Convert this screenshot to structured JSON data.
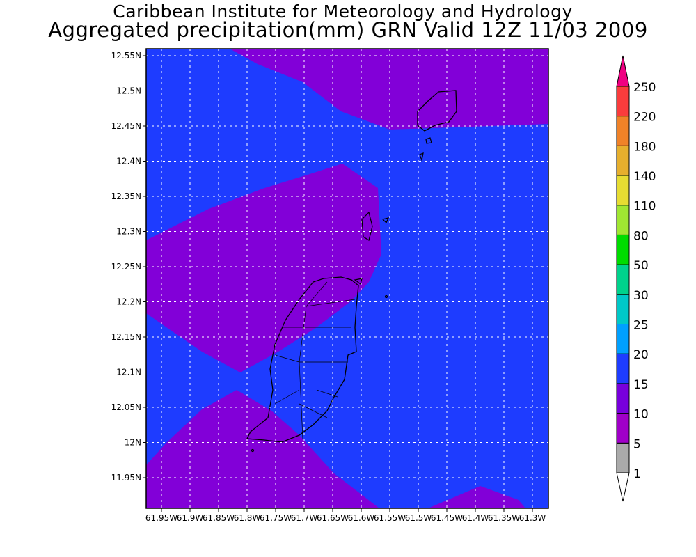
{
  "title": {
    "line1": "Caribbean Institute for Meteorology and Hydrology",
    "line2": "Aggregated precipitation(mm) GRN Valid 12Z 11/03 2009"
  },
  "map": {
    "region": "Grenada",
    "lat_labels": [
      "12.55N",
      "12.5N",
      "12.45N",
      "12.4N",
      "12.35N",
      "12.3N",
      "12.25N",
      "12.2N",
      "12.15N",
      "12.1N",
      "12.05N",
      "12N",
      "11.95N"
    ],
    "lon_labels": [
      "61.95W",
      "61.9W",
      "61.85W",
      "61.8W",
      "61.75W",
      "61.7W",
      "61.65W",
      "61.6W",
      "61.55W",
      "61.5W",
      "61.45W",
      "61.4W",
      "61.35W",
      "61.3W"
    ],
    "field_colors": {
      "5-10": "#8c00d2",
      "15-20": "#1e3cff"
    }
  },
  "colorbar": {
    "labels": [
      "1",
      "5",
      "10",
      "15",
      "20",
      "25",
      "30",
      "50",
      "80",
      "110",
      "140",
      "180",
      "220",
      "250"
    ],
    "colors": [
      "#ffffff",
      "#aaaaaa",
      "#a000c8",
      "#7800dc",
      "#1e3cff",
      "#00a0ff",
      "#00c8c8",
      "#00d28c",
      "#00dc00",
      "#a0e632",
      "#e6dc32",
      "#e6af2d",
      "#f08228",
      "#fa3c3c",
      "#f00082"
    ]
  }
}
